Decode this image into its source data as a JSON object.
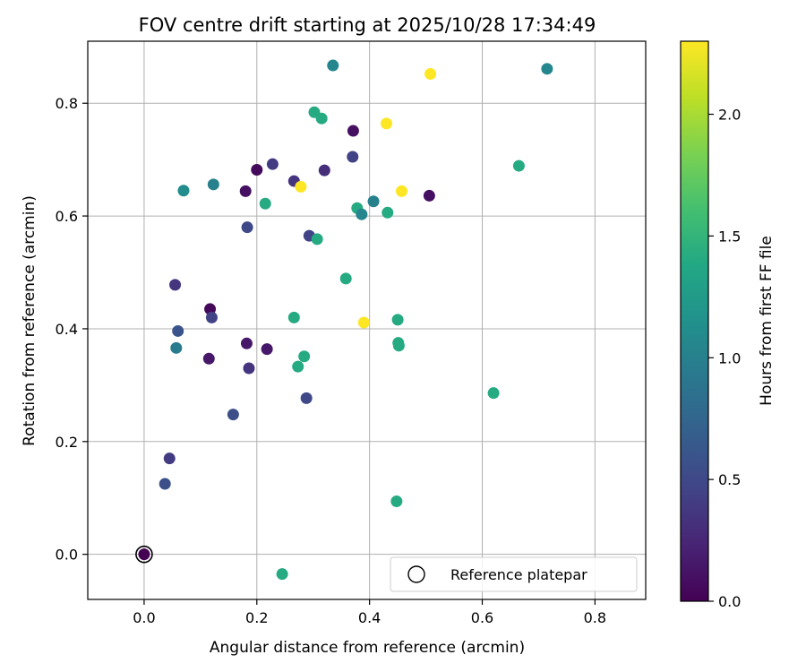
{
  "chart_data": {
    "type": "scatter",
    "title": "FOV centre drift starting at 2025/10/28 17:34:49",
    "xlabel": "Angular distance from reference (arcmin)",
    "ylabel": "Rotation from reference (arcmin)",
    "xlim": [
      -0.1,
      0.89
    ],
    "ylim": [
      -0.08,
      0.91
    ],
    "xticks": [
      0.0,
      0.2,
      0.4,
      0.6,
      0.8
    ],
    "yticks": [
      0.0,
      0.2,
      0.4,
      0.6,
      0.8
    ],
    "xtick_labels": [
      "0.0",
      "0.2",
      "0.4",
      "0.6",
      "0.8"
    ],
    "ytick_labels": [
      "0.0",
      "0.2",
      "0.4",
      "0.6",
      "0.8"
    ],
    "grid": true,
    "colorbar": {
      "label": "Hours from first FF file",
      "range": [
        0.0,
        2.3
      ],
      "ticks": [
        0.0,
        0.5,
        1.0,
        1.5,
        2.0
      ],
      "tick_labels": [
        "0.0",
        "0.5",
        "1.0",
        "1.5",
        "2.0"
      ],
      "colormap": "viridis"
    },
    "legend": {
      "location": "lower-right",
      "entries": [
        "Reference platepar"
      ]
    },
    "reference_point": {
      "x": 0.0,
      "y": 0.0
    },
    "points": [
      {
        "x": 0.0,
        "y": 0.0,
        "hours": 0.0
      },
      {
        "x": 0.037,
        "y": 0.125,
        "hours": 0.55
      },
      {
        "x": 0.045,
        "y": 0.17,
        "hours": 0.4
      },
      {
        "x": 0.055,
        "y": 0.478,
        "hours": 0.35
      },
      {
        "x": 0.057,
        "y": 0.366,
        "hours": 0.95
      },
      {
        "x": 0.06,
        "y": 0.396,
        "hours": 0.6
      },
      {
        "x": 0.07,
        "y": 0.645,
        "hours": 1.1
      },
      {
        "x": 0.115,
        "y": 0.347,
        "hours": 0.15
      },
      {
        "x": 0.117,
        "y": 0.435,
        "hours": 0.05
      },
      {
        "x": 0.12,
        "y": 0.42,
        "hours": 0.45
      },
      {
        "x": 0.123,
        "y": 0.656,
        "hours": 1.0
      },
      {
        "x": 0.158,
        "y": 0.248,
        "hours": 0.55
      },
      {
        "x": 0.18,
        "y": 0.644,
        "hours": 0.1
      },
      {
        "x": 0.182,
        "y": 0.374,
        "hours": 0.15
      },
      {
        "x": 0.183,
        "y": 0.58,
        "hours": 0.5
      },
      {
        "x": 0.186,
        "y": 0.33,
        "hours": 0.35
      },
      {
        "x": 0.2,
        "y": 0.682,
        "hours": 0.05
      },
      {
        "x": 0.215,
        "y": 0.622,
        "hours": 1.4
      },
      {
        "x": 0.218,
        "y": 0.364,
        "hours": 0.15
      },
      {
        "x": 0.228,
        "y": 0.692,
        "hours": 0.4
      },
      {
        "x": 0.245,
        "y": -0.035,
        "hours": 1.4
      },
      {
        "x": 0.266,
        "y": 0.662,
        "hours": 0.35
      },
      {
        "x": 0.266,
        "y": 0.42,
        "hours": 1.4
      },
      {
        "x": 0.273,
        "y": 0.333,
        "hours": 1.4
      },
      {
        "x": 0.278,
        "y": 0.652,
        "hours": 2.3
      },
      {
        "x": 0.284,
        "y": 0.351,
        "hours": 1.4
      },
      {
        "x": 0.288,
        "y": 0.277,
        "hours": 0.5
      },
      {
        "x": 0.293,
        "y": 0.565,
        "hours": 0.45
      },
      {
        "x": 0.302,
        "y": 0.784,
        "hours": 1.4
      },
      {
        "x": 0.307,
        "y": 0.559,
        "hours": 1.4
      },
      {
        "x": 0.315,
        "y": 0.773,
        "hours": 1.4
      },
      {
        "x": 0.32,
        "y": 0.681,
        "hours": 0.3
      },
      {
        "x": 0.335,
        "y": 0.867,
        "hours": 1.05
      },
      {
        "x": 0.358,
        "y": 0.489,
        "hours": 1.4
      },
      {
        "x": 0.37,
        "y": 0.705,
        "hours": 0.45
      },
      {
        "x": 0.371,
        "y": 0.751,
        "hours": 0.1
      },
      {
        "x": 0.378,
        "y": 0.614,
        "hours": 1.4
      },
      {
        "x": 0.386,
        "y": 0.603,
        "hours": 1.05
      },
      {
        "x": 0.39,
        "y": 0.411,
        "hours": 2.3
      },
      {
        "x": 0.407,
        "y": 0.626,
        "hours": 1.0
      },
      {
        "x": 0.43,
        "y": 0.764,
        "hours": 2.3
      },
      {
        "x": 0.432,
        "y": 0.606,
        "hours": 1.4
      },
      {
        "x": 0.448,
        "y": 0.094,
        "hours": 1.4
      },
      {
        "x": 0.45,
        "y": 0.416,
        "hours": 1.4
      },
      {
        "x": 0.451,
        "y": 0.375,
        "hours": 1.4
      },
      {
        "x": 0.452,
        "y": 0.37,
        "hours": 1.4
      },
      {
        "x": 0.457,
        "y": 0.644,
        "hours": 2.3
      },
      {
        "x": 0.506,
        "y": 0.636,
        "hours": 0.1
      },
      {
        "x": 0.508,
        "y": 0.852,
        "hours": 2.3
      },
      {
        "x": 0.62,
        "y": 0.286,
        "hours": 1.4
      },
      {
        "x": 0.665,
        "y": 0.689,
        "hours": 1.4
      },
      {
        "x": 0.715,
        "y": 0.861,
        "hours": 1.05
      }
    ]
  }
}
